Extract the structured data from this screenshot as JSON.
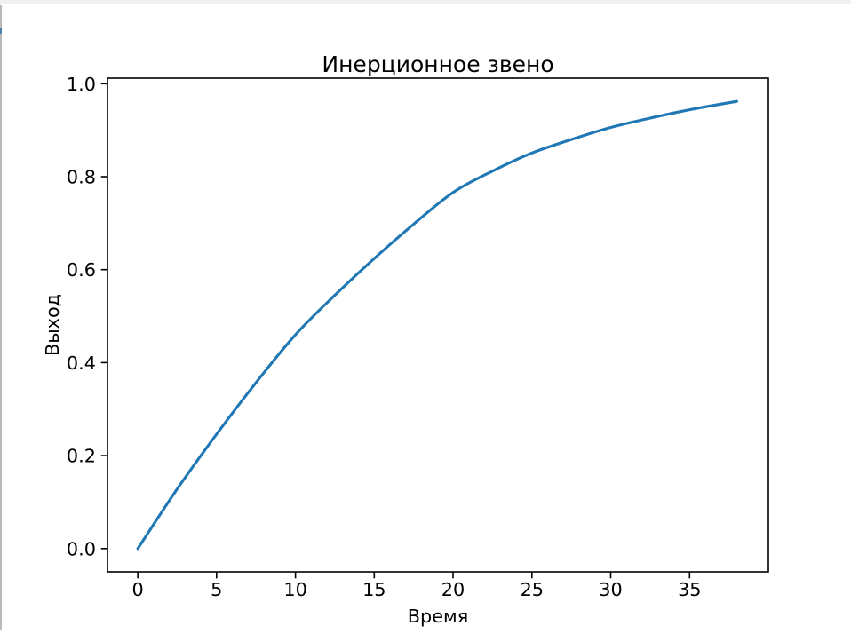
{
  "window": {
    "top_strip_color": "#f1f1f1",
    "edge_line_color": "#b9b9b9",
    "edge_accent_color": "#4d7fae",
    "background_color": "#ffffff"
  },
  "chart_data": {
    "type": "line",
    "title": "Инерционное звено",
    "xlabel": "Время",
    "ylabel": "Выход",
    "x": [
      0,
      2.5,
      5,
      7.5,
      10,
      12.5,
      15,
      17.5,
      20,
      22.5,
      25,
      27.5,
      30,
      32.5,
      35,
      38
    ],
    "y": [
      0.0,
      0.128,
      0.246,
      0.357,
      0.46,
      0.545,
      0.624,
      0.698,
      0.766,
      0.812,
      0.851,
      0.88,
      0.906,
      0.926,
      0.944,
      0.962
    ],
    "xlim": [
      -1.92,
      40.0
    ],
    "ylim": [
      -0.05,
      1.012
    ],
    "xticks": [
      0,
      5,
      10,
      15,
      20,
      25,
      30,
      35
    ],
    "yticks": [
      0.0,
      0.2,
      0.4,
      0.6,
      0.8,
      1.0
    ],
    "ytick_decimals": 1,
    "line_color": "#1f77b4",
    "line_width": 3.1,
    "frame_color": "#000000",
    "grid": false,
    "legend_position": "none"
  }
}
